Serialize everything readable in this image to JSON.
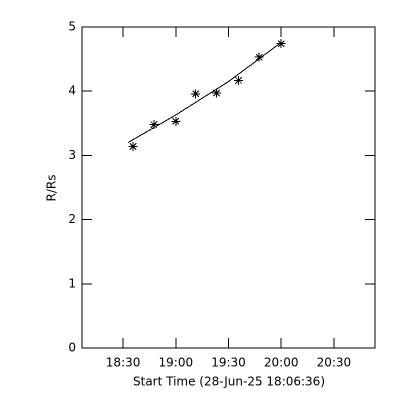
{
  "chart_data": {
    "type": "scatter",
    "xlabel": "Start Time (28-Jun-25 18:06:36)",
    "ylabel": "R/Rs",
    "xlim": [
      1086.6,
      1253.4
    ],
    "ylim": [
      0,
      5
    ],
    "xticks": [
      {
        "value": 1110,
        "label": "18:30"
      },
      {
        "value": 1140,
        "label": "19:00"
      },
      {
        "value": 1170,
        "label": "19:30"
      },
      {
        "value": 1200,
        "label": "20:00"
      },
      {
        "value": 1230,
        "label": "20:30"
      }
    ],
    "yticks": [
      0,
      1,
      2,
      3,
      4,
      5
    ],
    "series": [
      {
        "marker": "asterisk",
        "color": "#000000",
        "x": [
          1115.7,
          1127.5,
          1140,
          1151.3,
          1163.2,
          1175.7,
          1187.5,
          1200
        ],
        "values": [
          3.14,
          3.48,
          3.53,
          3.96,
          3.97,
          4.17,
          4.53,
          4.74
        ]
      },
      {
        "marker": "line",
        "color": "#000000",
        "x": [
          1112.8,
          1140,
          1170,
          1200
        ],
        "values": [
          3.2,
          3.63,
          4.15,
          4.76
        ]
      }
    ]
  }
}
